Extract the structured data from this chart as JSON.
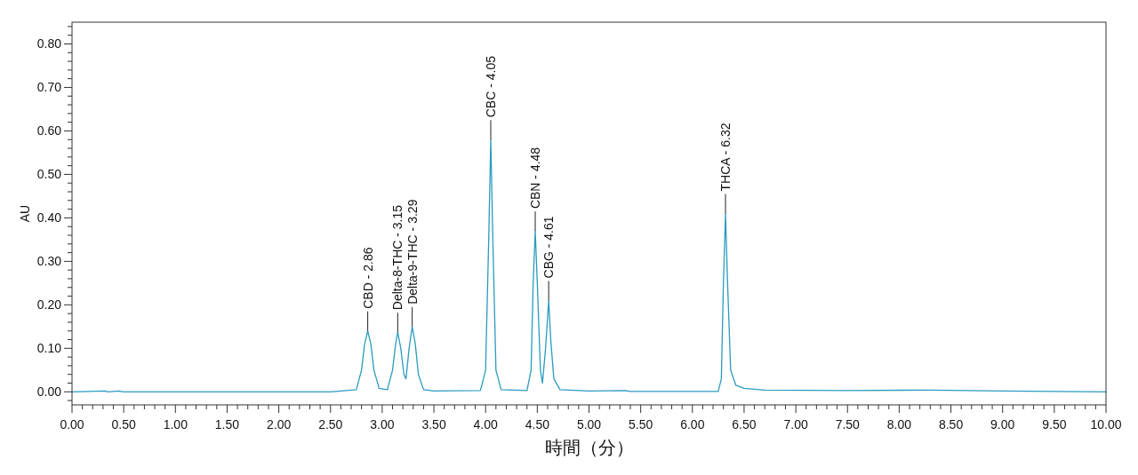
{
  "chart_data": {
    "type": "line",
    "xlabel": "時間（分）",
    "ylabel": "AU",
    "series": [
      {
        "color": "#2a9bbf",
        "x": [
          0,
          0.32,
          0.35,
          0.45,
          0.5,
          2.5,
          2.75,
          2.8,
          2.83,
          2.86,
          2.89,
          2.92,
          2.97,
          3.05,
          3.1,
          3.13,
          3.15,
          3.18,
          3.21,
          3.23,
          3.26,
          3.29,
          3.32,
          3.35,
          3.4,
          3.5,
          3.95,
          4.0,
          4.03,
          4.05,
          4.07,
          4.1,
          4.15,
          4.4,
          4.44,
          4.46,
          4.48,
          4.5,
          4.53,
          4.55,
          4.58,
          4.61,
          4.63,
          4.66,
          4.72,
          5.0,
          5.35,
          5.4,
          6.25,
          6.28,
          6.3,
          6.32,
          6.34,
          6.37,
          6.42,
          6.5,
          6.7,
          7.5,
          8.3,
          9.0,
          10.0
        ],
        "values": [
          0,
          0.002,
          0,
          0.002,
          0,
          0,
          0.005,
          0.05,
          0.11,
          0.14,
          0.11,
          0.05,
          0.008,
          0.005,
          0.05,
          0.11,
          0.137,
          0.1,
          0.04,
          0.03,
          0.1,
          0.15,
          0.11,
          0.04,
          0.005,
          0.002,
          0.003,
          0.05,
          0.35,
          0.58,
          0.35,
          0.05,
          0.005,
          0.003,
          0.05,
          0.25,
          0.37,
          0.25,
          0.05,
          0.02,
          0.1,
          0.21,
          0.12,
          0.03,
          0.005,
          0.002,
          0.003,
          0.001,
          0.001,
          0.03,
          0.25,
          0.41,
          0.25,
          0.05,
          0.015,
          0.008,
          0.004,
          0.003,
          0.004,
          0.002,
          0
        ]
      }
    ],
    "annotations": [
      {
        "text": "CBD - 2.86",
        "x": 2.86,
        "y": 0.14
      },
      {
        "text": "Delta-8-THC - 3.15",
        "x": 3.15,
        "y": 0.137
      },
      {
        "text": "Delta-9-THC - 3.29",
        "x": 3.29,
        "y": 0.15
      },
      {
        "text": "CBC - 4.05",
        "x": 4.05,
        "y": 0.58
      },
      {
        "text": "CBN - 4.48",
        "x": 4.48,
        "y": 0.37
      },
      {
        "text": "CBG - 4.61",
        "x": 4.61,
        "y": 0.21
      },
      {
        "text": "THCA - 6.32",
        "x": 6.32,
        "y": 0.41
      }
    ],
    "xlim": [
      0,
      10
    ],
    "ylim": [
      -0.03,
      0.85
    ],
    "xticks": [
      {
        "value": 0,
        "label": "0.00"
      },
      {
        "value": 0.1,
        "label": null
      },
      {
        "value": 0.2,
        "label": null
      },
      {
        "value": 0.3,
        "label": null
      },
      {
        "value": 0.4,
        "label": null
      },
      {
        "value": 0.5,
        "label": "0.50"
      },
      {
        "value": 0.6,
        "label": null
      },
      {
        "value": 0.7,
        "label": null
      },
      {
        "value": 0.8,
        "label": null
      },
      {
        "value": 0.9,
        "label": null
      },
      {
        "value": 1,
        "label": "1.00"
      },
      {
        "value": 1.1,
        "label": null
      },
      {
        "value": 1.2,
        "label": null
      },
      {
        "value": 1.3,
        "label": null
      },
      {
        "value": 1.4,
        "label": null
      },
      {
        "value": 1.5,
        "label": "1.50"
      },
      {
        "value": 1.6,
        "label": null
      },
      {
        "value": 1.7,
        "label": null
      },
      {
        "value": 1.8,
        "label": null
      },
      {
        "value": 1.9,
        "label": null
      },
      {
        "value": 2,
        "label": "2.00"
      },
      {
        "value": 2.1,
        "label": null
      },
      {
        "value": 2.2,
        "label": null
      },
      {
        "value": 2.3,
        "label": null
      },
      {
        "value": 2.4,
        "label": null
      },
      {
        "value": 2.5,
        "label": "2.50"
      },
      {
        "value": 2.6,
        "label": null
      },
      {
        "value": 2.7,
        "label": null
      },
      {
        "value": 2.8,
        "label": null
      },
      {
        "value": 2.9,
        "label": null
      },
      {
        "value": 3,
        "label": "3.00"
      },
      {
        "value": 3.1,
        "label": null
      },
      {
        "value": 3.2,
        "label": null
      },
      {
        "value": 3.3,
        "label": null
      },
      {
        "value": 3.4,
        "label": null
      },
      {
        "value": 3.5,
        "label": "3.50"
      },
      {
        "value": 3.6,
        "label": null
      },
      {
        "value": 3.7,
        "label": null
      },
      {
        "value": 3.8,
        "label": null
      },
      {
        "value": 3.9,
        "label": null
      },
      {
        "value": 4,
        "label": "4.00"
      },
      {
        "value": 4.1,
        "label": null
      },
      {
        "value": 4.2,
        "label": null
      },
      {
        "value": 4.3,
        "label": null
      },
      {
        "value": 4.4,
        "label": null
      },
      {
        "value": 4.5,
        "label": "4.50"
      },
      {
        "value": 4.6,
        "label": null
      },
      {
        "value": 4.7,
        "label": null
      },
      {
        "value": 4.8,
        "label": null
      },
      {
        "value": 4.9,
        "label": null
      },
      {
        "value": 5,
        "label": "5.00"
      },
      {
        "value": 5.1,
        "label": null
      },
      {
        "value": 5.2,
        "label": null
      },
      {
        "value": 5.3,
        "label": null
      },
      {
        "value": 5.4,
        "label": null
      },
      {
        "value": 5.5,
        "label": "5.50"
      },
      {
        "value": 5.6,
        "label": null
      },
      {
        "value": 5.7,
        "label": null
      },
      {
        "value": 5.8,
        "label": null
      },
      {
        "value": 5.9,
        "label": null
      },
      {
        "value": 6,
        "label": "6.00"
      },
      {
        "value": 6.1,
        "label": null
      },
      {
        "value": 6.2,
        "label": null
      },
      {
        "value": 6.3,
        "label": null
      },
      {
        "value": 6.4,
        "label": null
      },
      {
        "value": 6.5,
        "label": "6.50"
      },
      {
        "value": 6.6,
        "label": null
      },
      {
        "value": 6.7,
        "label": null
      },
      {
        "value": 6.8,
        "label": null
      },
      {
        "value": 6.9,
        "label": null
      },
      {
        "value": 7,
        "label": "7.00"
      },
      {
        "value": 7.1,
        "label": null
      },
      {
        "value": 7.2,
        "label": null
      },
      {
        "value": 7.3,
        "label": null
      },
      {
        "value": 7.4,
        "label": null
      },
      {
        "value": 7.5,
        "label": "7.50"
      },
      {
        "value": 7.6,
        "label": null
      },
      {
        "value": 7.7,
        "label": null
      },
      {
        "value": 7.8,
        "label": null
      },
      {
        "value": 7.9,
        "label": null
      },
      {
        "value": 8,
        "label": "8.00"
      },
      {
        "value": 8.1,
        "label": null
      },
      {
        "value": 8.2,
        "label": null
      },
      {
        "value": 8.3,
        "label": null
      },
      {
        "value": 8.4,
        "label": null
      },
      {
        "value": 8.5,
        "label": "8.50"
      },
      {
        "value": 8.6,
        "label": null
      },
      {
        "value": 8.7,
        "label": null
      },
      {
        "value": 8.8,
        "label": null
      },
      {
        "value": 8.9,
        "label": null
      },
      {
        "value": 9,
        "label": "9.00"
      },
      {
        "value": 9.1,
        "label": null
      },
      {
        "value": 9.2,
        "label": null
      },
      {
        "value": 9.3,
        "label": null
      },
      {
        "value": 9.4,
        "label": null
      },
      {
        "value": 9.5,
        "label": "9.50"
      },
      {
        "value": 9.6,
        "label": null
      },
      {
        "value": 9.7,
        "label": null
      },
      {
        "value": 9.8,
        "label": null
      },
      {
        "value": 9.9,
        "label": null
      },
      {
        "value": 10,
        "label": "10.00"
      }
    ],
    "yticks": [
      {
        "value": -0.02,
        "label": null
      },
      {
        "value": 0,
        "label": "0.00"
      },
      {
        "value": 0.02,
        "label": null
      },
      {
        "value": 0.04,
        "label": null
      },
      {
        "value": 0.06,
        "label": null
      },
      {
        "value": 0.08,
        "label": null
      },
      {
        "value": 0.1,
        "label": "0.10"
      },
      {
        "value": 0.12,
        "label": null
      },
      {
        "value": 0.14,
        "label": null
      },
      {
        "value": 0.16,
        "label": null
      },
      {
        "value": 0.18,
        "label": null
      },
      {
        "value": 0.2,
        "label": "0.20"
      },
      {
        "value": 0.22,
        "label": null
      },
      {
        "value": 0.24,
        "label": null
      },
      {
        "value": 0.26,
        "label": null
      },
      {
        "value": 0.28,
        "label": null
      },
      {
        "value": 0.3,
        "label": "0.30"
      },
      {
        "value": 0.32,
        "label": null
      },
      {
        "value": 0.34,
        "label": null
      },
      {
        "value": 0.36,
        "label": null
      },
      {
        "value": 0.38,
        "label": null
      },
      {
        "value": 0.4,
        "label": "0.40"
      },
      {
        "value": 0.42,
        "label": null
      },
      {
        "value": 0.44,
        "label": null
      },
      {
        "value": 0.46,
        "label": null
      },
      {
        "value": 0.48,
        "label": null
      },
      {
        "value": 0.5,
        "label": "0.50"
      },
      {
        "value": 0.52,
        "label": null
      },
      {
        "value": 0.54,
        "label": null
      },
      {
        "value": 0.56,
        "label": null
      },
      {
        "value": 0.58,
        "label": null
      },
      {
        "value": 0.6,
        "label": "0.60"
      },
      {
        "value": 0.62,
        "label": null
      },
      {
        "value": 0.64,
        "label": null
      },
      {
        "value": 0.66,
        "label": null
      },
      {
        "value": 0.68,
        "label": null
      },
      {
        "value": 0.7,
        "label": "0.70"
      },
      {
        "value": 0.72,
        "label": null
      },
      {
        "value": 0.74,
        "label": null
      },
      {
        "value": 0.76,
        "label": null
      },
      {
        "value": 0.78,
        "label": null
      },
      {
        "value": 0.8,
        "label": "0.80"
      },
      {
        "value": 0.82,
        "label": null
      },
      {
        "value": 0.84,
        "label": null
      }
    ],
    "grid": false,
    "marker": "none",
    "line_style": "solid"
  }
}
